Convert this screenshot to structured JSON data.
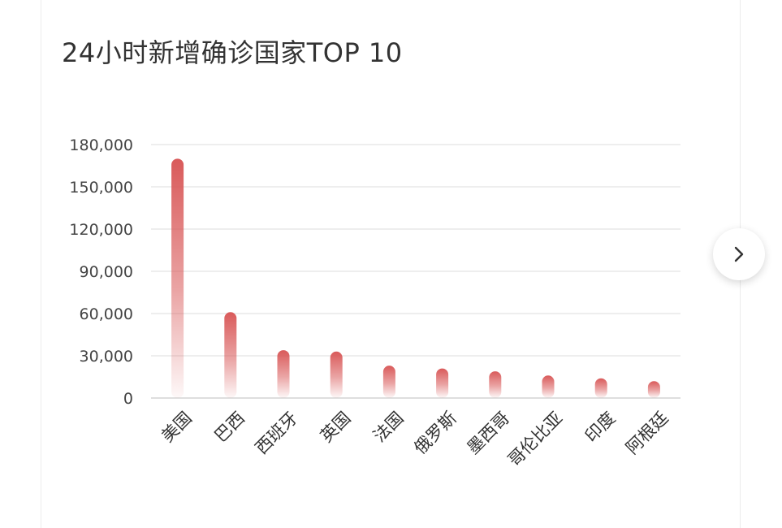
{
  "page": {
    "title": "24小时新增确诊国家TOP 10",
    "next_icon": "chevron-right-icon"
  },
  "chart_data": {
    "type": "bar",
    "title": "24小时新增确诊国家TOP 10",
    "categories": [
      "美国",
      "巴西",
      "西班牙",
      "英国",
      "法国",
      "俄罗斯",
      "墨西哥",
      "哥伦比亚",
      "印度",
      "阿根廷"
    ],
    "values": [
      170000,
      61000,
      34000,
      33000,
      23000,
      21000,
      19000,
      16000,
      14000,
      12000
    ],
    "ylim": [
      0,
      180000
    ],
    "yticks": [
      0,
      30000,
      60000,
      90000,
      120000,
      150000,
      180000
    ],
    "ytick_labels": [
      "0",
      "30,000",
      "60,000",
      "90,000",
      "120,000",
      "150,000",
      "180,000"
    ],
    "bar_color": "#d95a5a",
    "grid": true,
    "legend": "none"
  }
}
